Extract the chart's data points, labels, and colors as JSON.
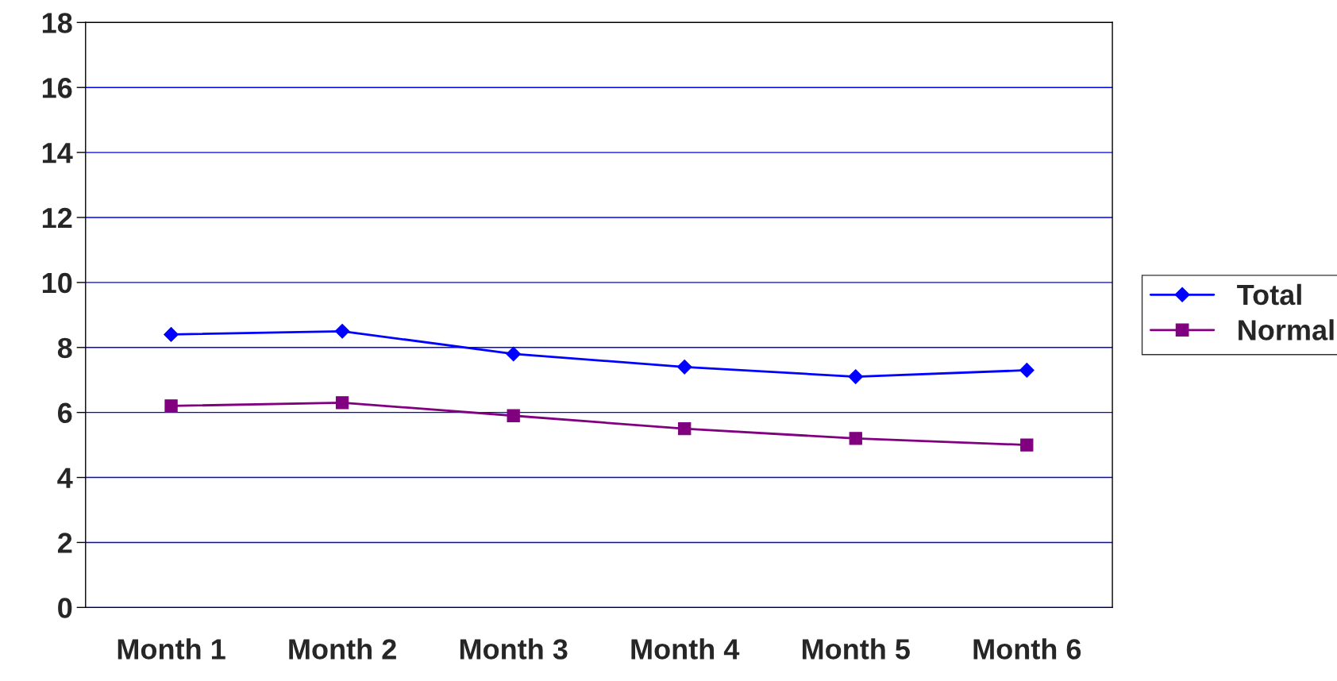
{
  "chart_data": {
    "type": "line",
    "categories": [
      "Month 1",
      "Month 2",
      "Month 3",
      "Month 4",
      "Month 5",
      "Month 6"
    ],
    "series": [
      {
        "name": "Total",
        "color": "#0000ff",
        "marker": "diamond",
        "values": [
          8.4,
          8.5,
          7.8,
          7.4,
          7.1,
          7.3
        ]
      },
      {
        "name": "Normal",
        "color": "#800080",
        "marker": "square",
        "values": [
          6.2,
          6.3,
          5.9,
          5.5,
          5.2,
          5.0
        ]
      }
    ],
    "ylim": [
      0,
      18
    ],
    "yticks": [
      0,
      2,
      4,
      6,
      8,
      10,
      12,
      14,
      16,
      18
    ],
    "grid": "y",
    "legend": "right",
    "line_style": "solid"
  }
}
